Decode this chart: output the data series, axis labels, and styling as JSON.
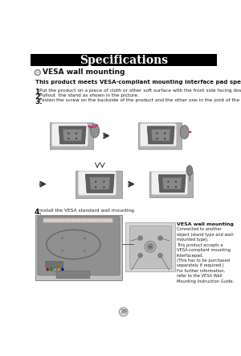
{
  "title": "Specifications",
  "title_bg": "#000000",
  "title_color": "#ffffff",
  "title_fontsize": 10,
  "section_title": "VESA wall mounting",
  "bold_line": "This product meets VESA-compliant mounting interface pad specifications.",
  "step1": "Put the product on a piece of cloth or other soft surface with the front side facing downward.",
  "step2": "Pullout  the stand as shown in the picture.",
  "step3": "Fasten the screw on the backside of the product and the other one in the joint of the stand.",
  "step4": "Install the VESA standard wall mounting.",
  "sidebar_title": "VESA wall mounting",
  "sidebar_text": "Connected to another\nobject (stand type and wall-\nmounted type).\nThis product accepts a\nVESA-compliant mounting\ninterfacepad.\n(This has to be purchased\nseparately if required.)\nFor further information,\nrefer to the VESA Wall\nMounting Instruction Guide.",
  "page_number": "39",
  "bg_color": "#ffffff",
  "accent_pink": "#cc2277",
  "gray_body": "#888888",
  "gray_screen": "#aaaaaa",
  "gray_cloth": "#cccccc",
  "gray_bg": "#bbbbbb"
}
